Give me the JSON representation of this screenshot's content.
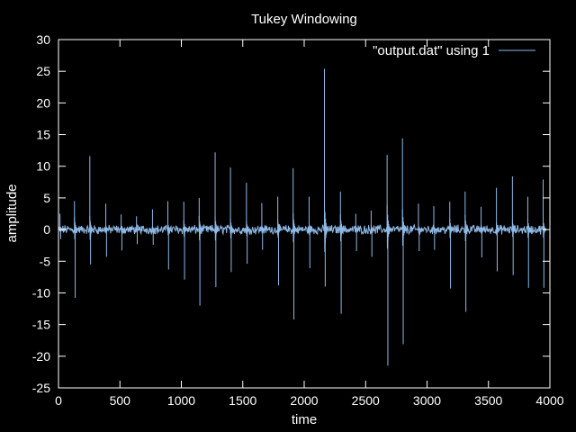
{
  "chart_data": {
    "type": "line",
    "title": "Tukey Windowing",
    "xlabel": "time",
    "ylabel": "amplitude",
    "xlim": [
      0,
      4000
    ],
    "ylim": [
      -25,
      30
    ],
    "xticks": [
      0,
      500,
      1000,
      1500,
      2000,
      2500,
      3000,
      3500,
      4000
    ],
    "yticks": [
      -25,
      -20,
      -15,
      -10,
      -5,
      0,
      5,
      10,
      15,
      20,
      25,
      30
    ],
    "grid": false,
    "legend_position": "top-right",
    "background": "#000000",
    "axis_color": "#ffffff",
    "series": [
      {
        "name": "\"output.dat\" using 1",
        "color": "#8fb9e6",
        "x_end": 3950,
        "baseline_noise": 0.6,
        "spikes": [
          {
            "x": 12,
            "up": 2.5,
            "down": -1.5
          },
          {
            "x": 130,
            "up": 4.5,
            "down": -10.8
          },
          {
            "x": 255,
            "up": 11.6,
            "down": -5.5
          },
          {
            "x": 385,
            "up": 4.1,
            "down": -4.3
          },
          {
            "x": 510,
            "up": 2.4,
            "down": -3.3
          },
          {
            "x": 635,
            "up": 2.1,
            "down": -2.3
          },
          {
            "x": 765,
            "up": 3.2,
            "down": -2.4
          },
          {
            "x": 890,
            "up": 4.5,
            "down": -6.3
          },
          {
            "x": 1020,
            "up": 4.4,
            "down": -7.9
          },
          {
            "x": 1145,
            "up": 5.0,
            "down": -12.0
          },
          {
            "x": 1275,
            "up": 12.2,
            "down": -9.1
          },
          {
            "x": 1400,
            "up": 9.8,
            "down": -6.7
          },
          {
            "x": 1530,
            "up": 7.4,
            "down": -5.4
          },
          {
            "x": 1655,
            "up": 4.2,
            "down": -3.2
          },
          {
            "x": 1785,
            "up": 5.2,
            "down": -8.8
          },
          {
            "x": 1910,
            "up": 9.7,
            "down": -14.2
          },
          {
            "x": 2040,
            "up": 5.2,
            "down": -6.1
          },
          {
            "x": 2165,
            "up": 25.4,
            "down": -9.0
          },
          {
            "x": 2295,
            "up": 6.0,
            "down": -13.3
          },
          {
            "x": 2420,
            "up": 2.5,
            "down": -3.4
          },
          {
            "x": 2545,
            "up": 3.0,
            "down": -4.3
          },
          {
            "x": 2675,
            "up": 11.8,
            "down": -21.5
          },
          {
            "x": 2800,
            "up": 14.4,
            "down": -18.1
          },
          {
            "x": 2930,
            "up": 4.1,
            "down": -3.4
          },
          {
            "x": 3055,
            "up": 3.7,
            "down": -3.2
          },
          {
            "x": 3185,
            "up": 4.4,
            "down": -9.3
          },
          {
            "x": 3310,
            "up": 6.0,
            "down": -13.0
          },
          {
            "x": 3440,
            "up": 3.6,
            "down": -4.4
          },
          {
            "x": 3565,
            "up": 6.6,
            "down": -6.6
          },
          {
            "x": 3695,
            "up": 8.4,
            "down": -7.2
          },
          {
            "x": 3820,
            "up": 5.2,
            "down": -9.2
          },
          {
            "x": 3945,
            "up": 7.9,
            "down": -9.2
          }
        ]
      }
    ]
  }
}
